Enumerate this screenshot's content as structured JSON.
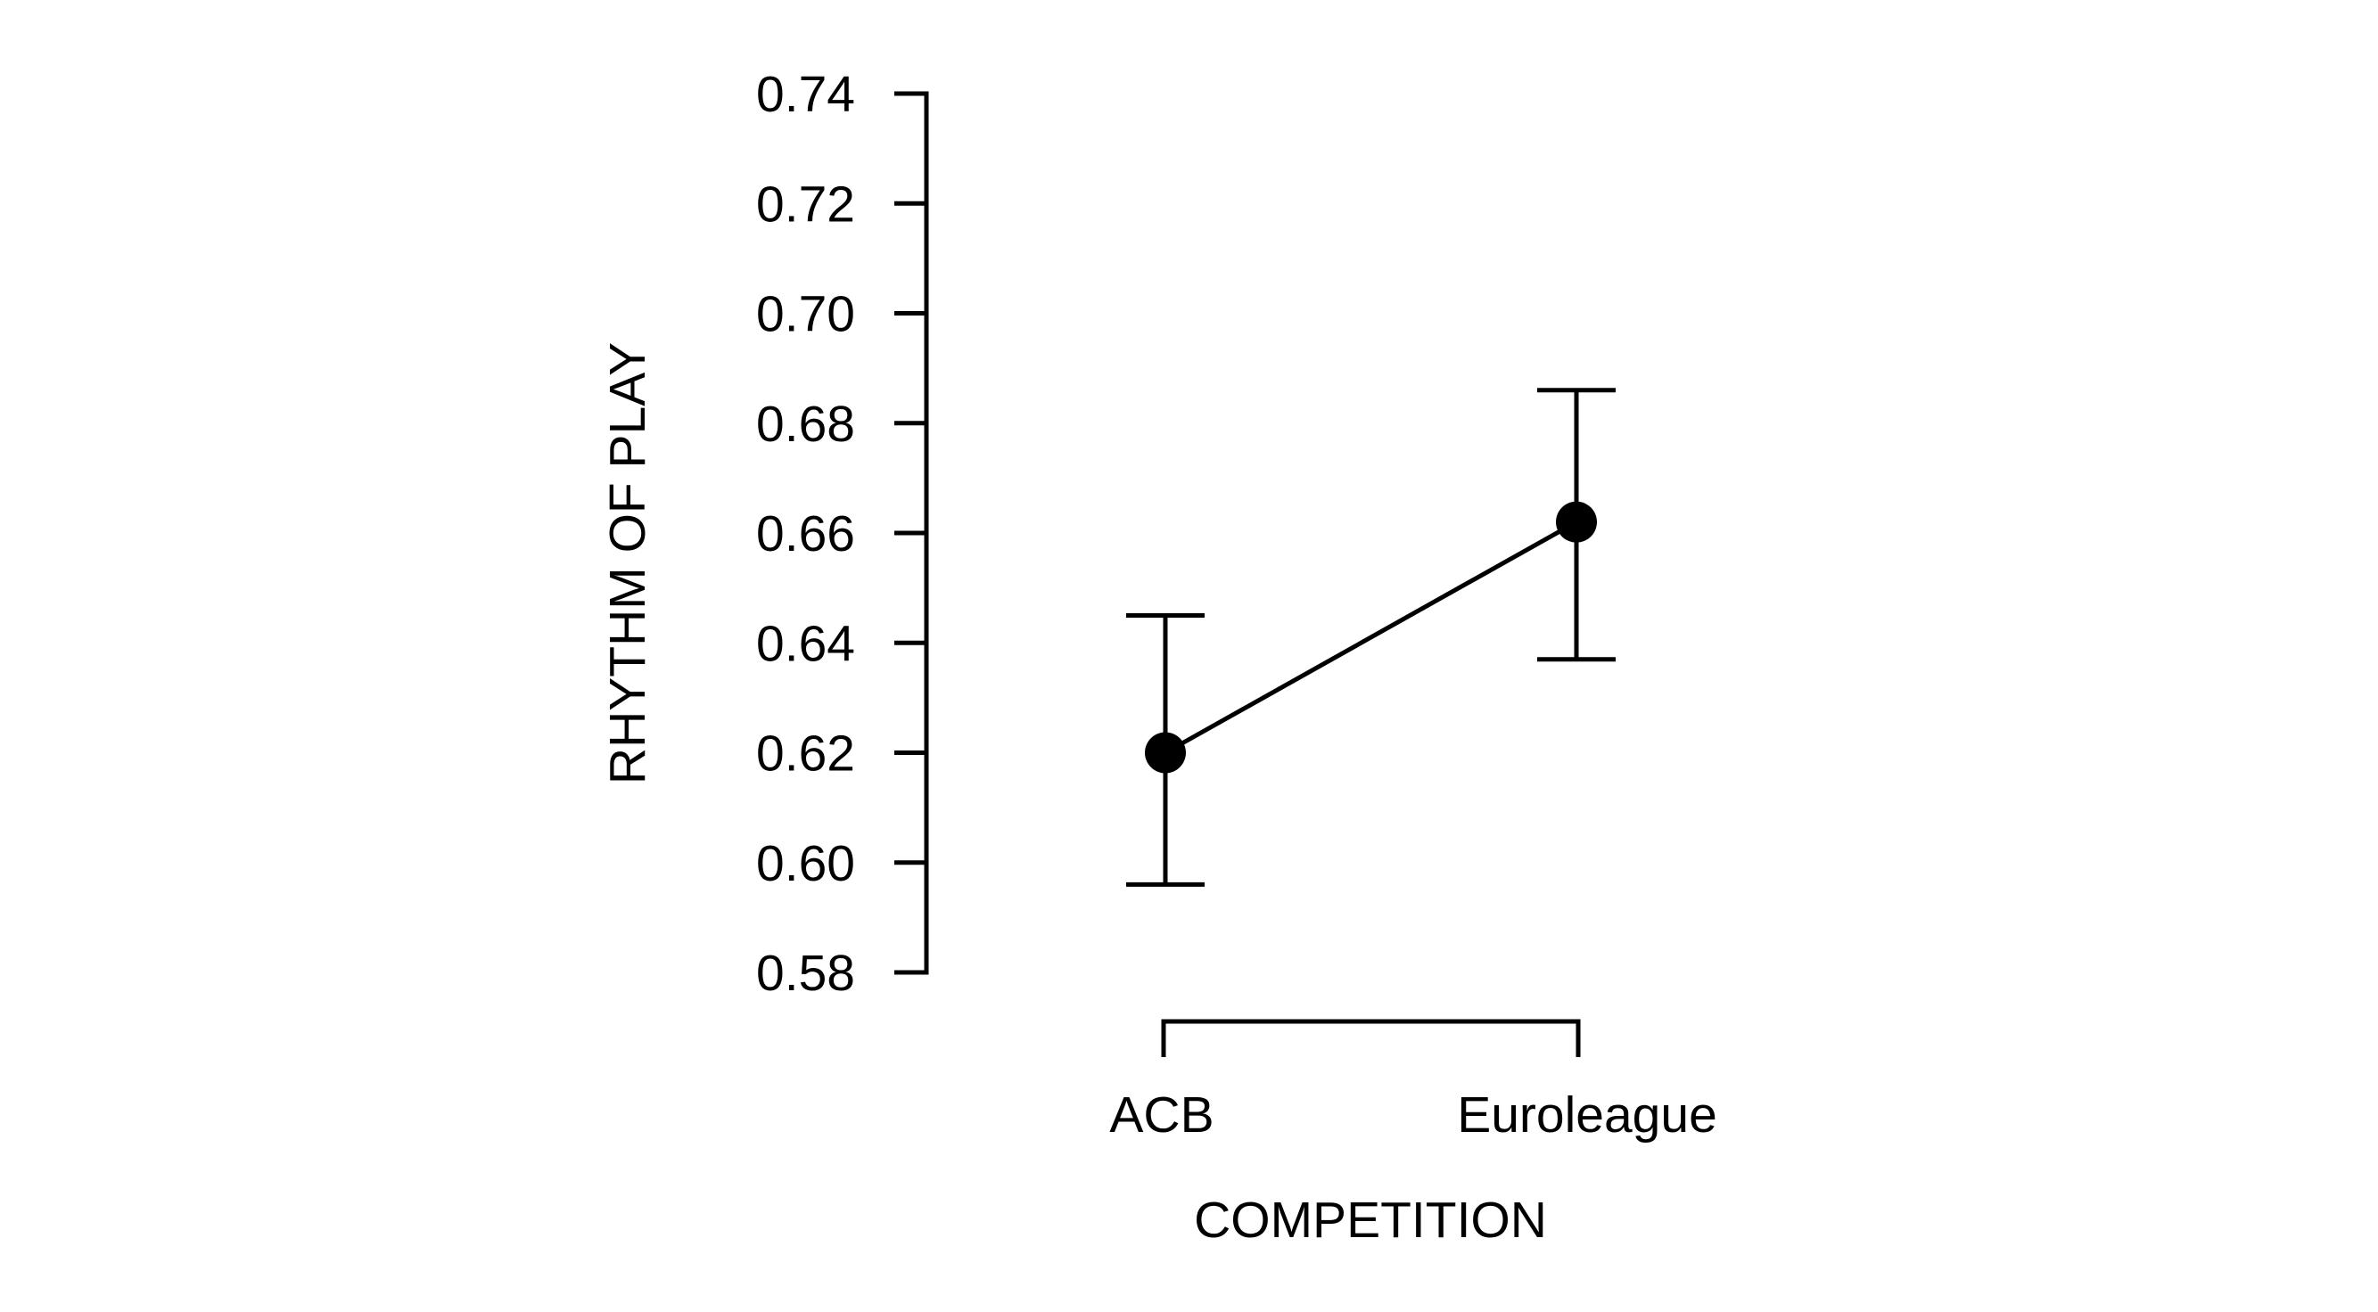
{
  "chart_data": {
    "type": "line",
    "xlabel": "COMPETITION",
    "ylabel": "RHYTHM OF PLAY",
    "categories": [
      "ACB",
      "Euroleague"
    ],
    "series": [
      {
        "values": [
          0.62,
          0.662
        ],
        "error_low": [
          0.596,
          0.637
        ],
        "error_high": [
          0.645,
          0.686
        ]
      }
    ],
    "ylim": [
      0.58,
      0.74
    ],
    "yticks": [
      "0.58",
      "0.60",
      "0.62",
      "0.64",
      "0.66",
      "0.68",
      "0.70",
      "0.72",
      "0.74"
    ],
    "grid": false,
    "legend": "none",
    "colors": {
      "ink": "#000000",
      "background": "#ffffff"
    }
  }
}
